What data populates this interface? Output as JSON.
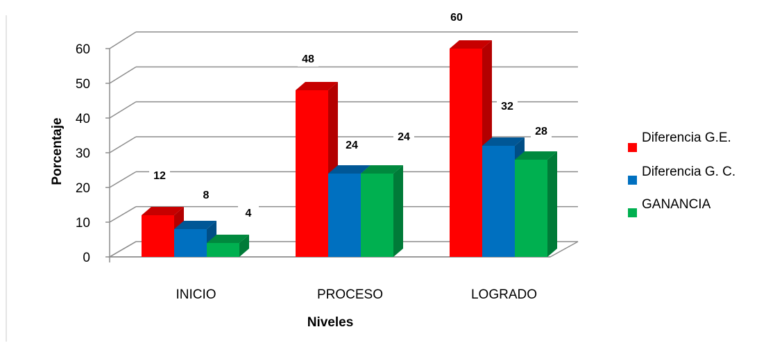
{
  "chart_data": {
    "type": "bar",
    "title": "",
    "xlabel": "Niveles",
    "ylabel": "Porcentaje",
    "categories": [
      "INICIO",
      "PROCESO",
      "LOGRADO"
    ],
    "series": [
      {
        "name": "Diferencia G.E.",
        "values": [
          12,
          48,
          60
        ],
        "color": "#ff0000"
      },
      {
        "name": "Diferencia G. C.",
        "values": [
          8,
          24,
          32
        ],
        "color": "#0070c0"
      },
      {
        "name": "GANANCIA",
        "values": [
          4,
          24,
          28
        ],
        "color": "#00b050"
      }
    ],
    "ylim": [
      0,
      60
    ],
    "yticks": [
      "0",
      "10",
      "20",
      "30",
      "40",
      "50",
      "60"
    ],
    "grid": true,
    "legend": "right",
    "three_d": true
  }
}
